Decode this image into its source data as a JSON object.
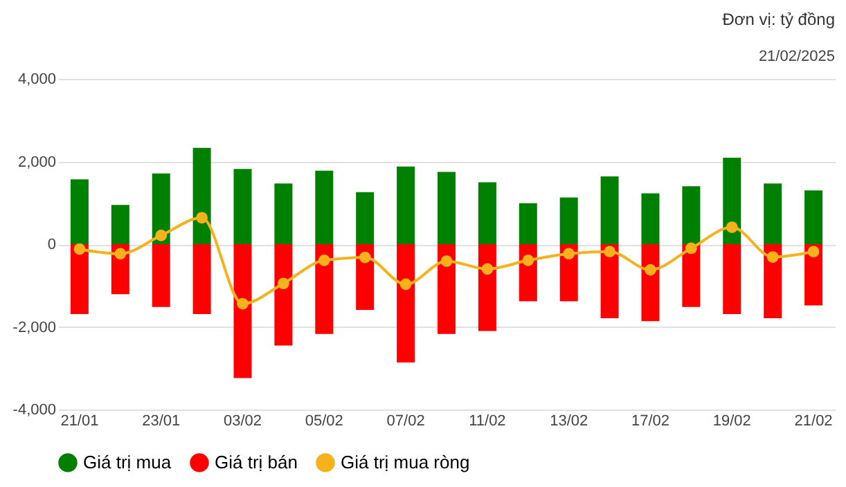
{
  "chart_data": {
    "type": "bar",
    "annotations": [
      "Đơn vị: tỷ đồng",
      "21/02/2025"
    ],
    "categories": [
      "21/01",
      null,
      "23/01",
      null,
      "03/02",
      null,
      "05/02",
      null,
      "07/02",
      null,
      "11/02",
      null,
      "13/02",
      null,
      "17/02",
      null,
      "19/02",
      null,
      "21/02"
    ],
    "series": [
      {
        "name": "Giá trị mua",
        "color": "#008000",
        "values": [
          1570,
          950,
          1710,
          2330,
          1820,
          1470,
          1780,
          1260,
          1880,
          1750,
          1500,
          990,
          1130,
          1640,
          1230,
          1400,
          2090,
          1470,
          1300
        ]
      },
      {
        "name": "Giá trị bán",
        "color": "#ff0000",
        "values": [
          -1690,
          -1210,
          -1520,
          -1690,
          -3240,
          -2450,
          -2170,
          -1590,
          -2860,
          -2170,
          -2100,
          -1380,
          -1380,
          -1790,
          -1860,
          -1520,
          -1690,
          -1790,
          -1480
        ]
      },
      {
        "name": "Giá trị mua ròng",
        "color": "#f5b21b",
        "type": "line",
        "values": [
          -120,
          -230,
          210,
          640,
          -1440,
          -950,
          -390,
          -320,
          -970,
          -410,
          -600,
          -390,
          -230,
          -180,
          -620,
          -100,
          410,
          -310,
          -180
        ]
      }
    ],
    "stacked": true,
    "ylim": [
      -4000,
      4000
    ],
    "yticks": [
      {
        "value": -4000,
        "label": "-4,000"
      },
      {
        "value": -2000,
        "label": "-2,000"
      },
      0,
      {
        "value": 2000,
        "label": "2,000"
      },
      {
        "value": 4000,
        "label": "4,000"
      }
    ],
    "grid": "y",
    "legend": "bottom",
    "marker": "circle"
  }
}
